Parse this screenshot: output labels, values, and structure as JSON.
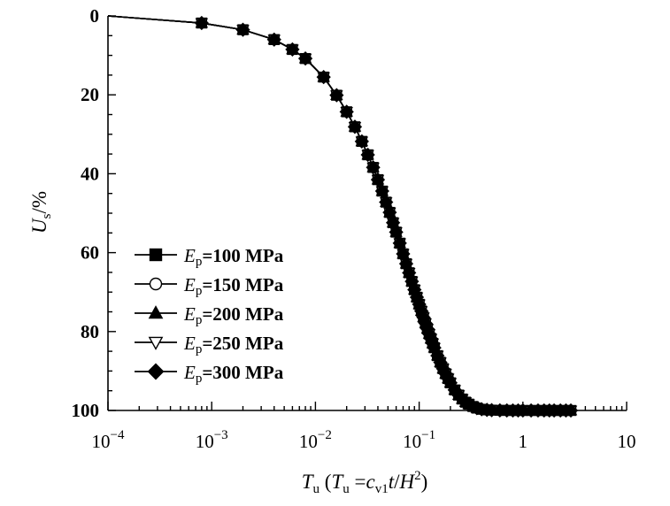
{
  "chart_data": {
    "type": "line",
    "title": "",
    "xscale": "log",
    "xlim": [
      0.0001,
      10
    ],
    "ylim": [
      0,
      100
    ],
    "y_inverted": true,
    "grid": false,
    "xlabel_parts": [
      "T",
      "u",
      " (",
      "T",
      "u",
      " =",
      "c",
      "v1",
      "t",
      "/",
      "H",
      "2",
      ")"
    ],
    "ylabel_parts": [
      "U",
      "s",
      "/%"
    ],
    "x_ticks": [
      {
        "value": 0.0001,
        "base": "10",
        "exp": "−4"
      },
      {
        "value": 0.001,
        "base": "10",
        "exp": "−3"
      },
      {
        "value": 0.01,
        "base": "10",
        "exp": "−2"
      },
      {
        "value": 0.1,
        "base": "10",
        "exp": "−1"
      },
      {
        "value": 1,
        "base": "1",
        "exp": ""
      },
      {
        "value": 10,
        "base": "10",
        "exp": ""
      }
    ],
    "y_ticks": [
      0,
      20,
      40,
      60,
      80,
      100
    ],
    "legend_position": "lower-left",
    "series": [
      {
        "name": "Ep=100 MPa",
        "label_var": "E",
        "label_sub": "p",
        "label_rest": "=100 MPa",
        "marker": "square"
      },
      {
        "name": "Ep=150 MPa",
        "label_var": "E",
        "label_sub": "p",
        "label_rest": "=150 MPa",
        "marker": "circle-open"
      },
      {
        "name": "Ep=200 MPa",
        "label_var": "E",
        "label_sub": "p",
        "label_rest": "=200 MPa",
        "marker": "triangle-up"
      },
      {
        "name": "Ep=250 MPa",
        "label_var": "E",
        "label_sub": "p",
        "label_rest": "=250 MPa",
        "marker": "triangle-down-open"
      },
      {
        "name": "Ep=300 MPa",
        "label_var": "E",
        "label_sub": "p",
        "label_rest": "=300 MPa",
        "marker": "diamond"
      }
    ],
    "x": [
      0.0001,
      0.0008,
      0.002,
      0.004,
      0.006,
      0.008,
      0.012,
      0.016,
      0.02,
      0.024,
      0.028,
      0.032,
      0.036,
      0.04,
      0.044,
      0.048,
      0.052,
      0.056,
      0.06,
      0.065,
      0.07,
      0.075,
      0.08,
      0.085,
      0.09,
      0.095,
      0.1,
      0.105,
      0.11,
      0.115,
      0.12,
      0.125,
      0.13,
      0.135,
      0.14,
      0.15,
      0.16,
      0.17,
      0.18,
      0.19,
      0.2,
      0.22,
      0.24,
      0.26,
      0.28,
      0.3,
      0.33,
      0.36,
      0.4,
      0.45,
      0.5,
      0.6,
      0.7,
      0.8,
      0.9,
      1.0,
      1.2,
      1.4,
      1.6,
      1.8,
      2.0,
      2.3,
      2.6,
      2.9
    ],
    "y": [
      0,
      1.8,
      3.5,
      6.0,
      8.5,
      10.8,
      15.5,
      20.1,
      24.3,
      28.1,
      31.8,
      35.2,
      38.4,
      41.5,
      44.4,
      47.2,
      49.8,
      52.4,
      54.8,
      57.6,
      60.3,
      62.8,
      65.1,
      67.3,
      69.4,
      71.3,
      73.1,
      74.8,
      76.4,
      77.9,
      79.3,
      80.6,
      81.8,
      83.0,
      84.1,
      86.1,
      87.8,
      89.4,
      90.7,
      91.9,
      93.0,
      94.8,
      96.1,
      97.1,
      97.9,
      98.4,
      99.0,
      99.4,
      99.7,
      99.85,
      99.92,
      99.97,
      99.99,
      100,
      100,
      100,
      100,
      100,
      100,
      100,
      100,
      100,
      100,
      100
    ]
  }
}
